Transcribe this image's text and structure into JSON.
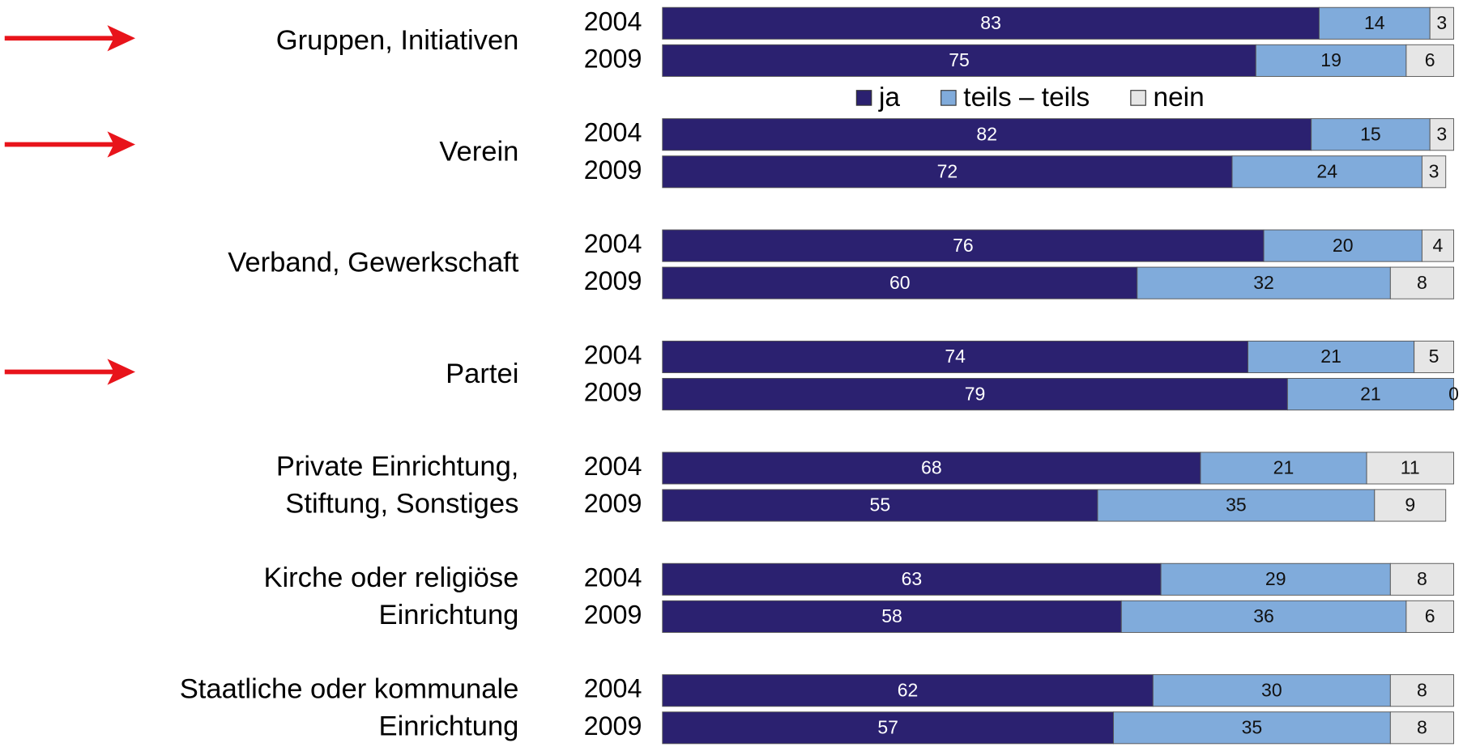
{
  "chart_data": {
    "type": "bar",
    "orientation": "horizontal",
    "stacked": true,
    "groups": [
      [
        "Gruppen, Initiativen"
      ],
      [
        "Verein"
      ],
      [
        "Verband, Gewerkschaft"
      ],
      [
        "Partei"
      ],
      [
        "Private Einrichtung,",
        "Stiftung, Sonstiges"
      ],
      [
        "Kirche oder religiöse",
        "Einrichtung"
      ],
      [
        "Staatliche oder kommunale",
        "Einrichtung"
      ]
    ],
    "categories": [
      "2004",
      "2009",
      "2004",
      "2009",
      "2004",
      "2009",
      "2004",
      "2009",
      "2004",
      "2009",
      "2004",
      "2009",
      "2004",
      "2009"
    ],
    "series": [
      {
        "name": "ja",
        "color": "#2b2170",
        "values": [
          83,
          75,
          82,
          72,
          76,
          60,
          74,
          79,
          68,
          55,
          63,
          58,
          62,
          57
        ]
      },
      {
        "name": "teils – teils",
        "color": "#80abdb",
        "values": [
          14,
          19,
          15,
          24,
          20,
          32,
          21,
          21,
          21,
          35,
          29,
          36,
          30,
          35
        ]
      },
      {
        "name": "nein",
        "color": "#e6e6e6",
        "values": [
          3,
          6,
          3,
          3,
          4,
          8,
          5,
          0,
          11,
          9,
          8,
          6,
          8,
          8
        ]
      }
    ],
    "xlim": [
      0,
      100
    ]
  }
}
